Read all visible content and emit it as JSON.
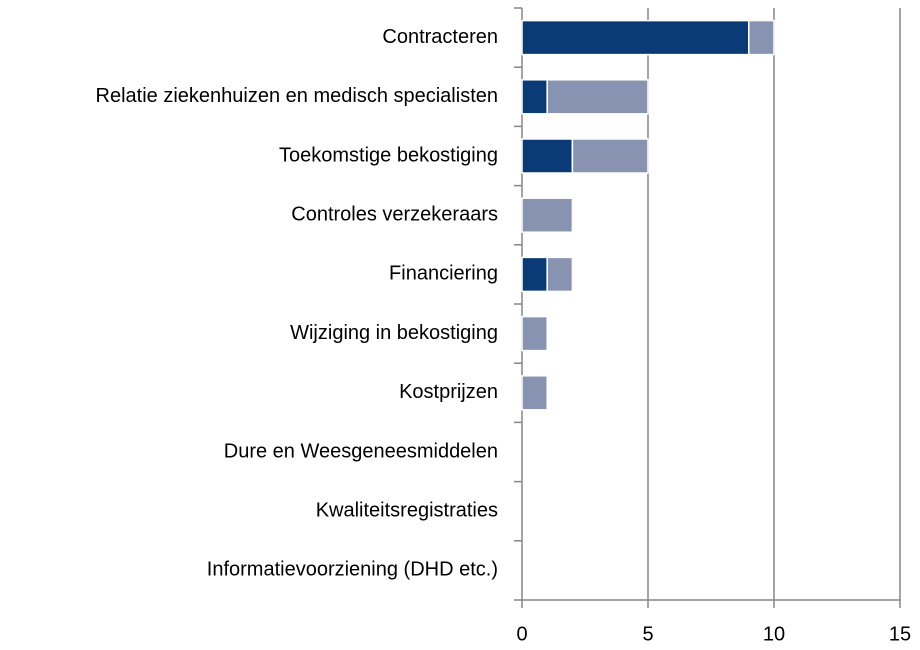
{
  "chart_data": {
    "type": "bar",
    "orientation": "horizontal",
    "stacked": true,
    "categories": [
      "Contracteren",
      "Relatie ziekenhuizen en medisch specialisten",
      "Toekomstige bekostiging",
      "Controles verzekeraars",
      "Financiering",
      "Wijziging in bekostiging",
      "Kostprijzen",
      "Dure en Weesgeneesmiddelen",
      "Kwaliteitsregistraties",
      "Informatievoorziening (DHD etc.)"
    ],
    "series": [
      {
        "color": "#0b3b76",
        "values": [
          9,
          1,
          2,
          0,
          1,
          0,
          0,
          0,
          0,
          0
        ]
      },
      {
        "color": "#8893b2",
        "values": [
          1,
          4,
          3,
          2,
          1,
          1,
          1,
          0,
          0,
          0
        ]
      }
    ],
    "xlim": [
      0,
      15
    ],
    "xticks": [
      0,
      5,
      10,
      15
    ],
    "grid": true
  }
}
